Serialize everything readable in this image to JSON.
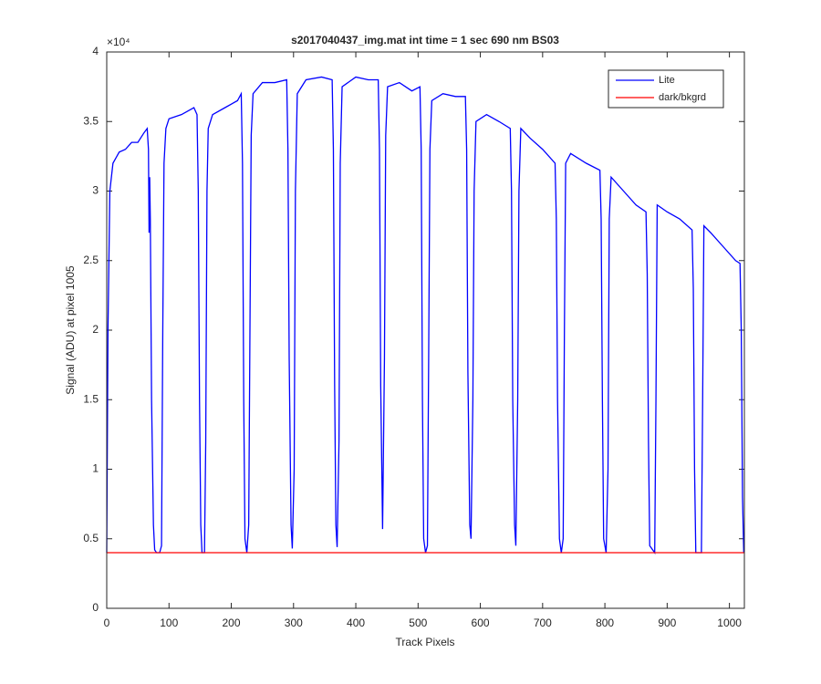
{
  "chart_data": {
    "type": "line",
    "title": "s2017040437_img.mat int time = 1 sec  690 nm BS03",
    "x_label": "Track Pixels",
    "y_label": "Signal (ADU) at pixel 1005",
    "y_exponent": "×10⁴",
    "xlim": [
      0,
      1024
    ],
    "xticks": [
      0,
      100,
      200,
      300,
      400,
      500,
      600,
      700,
      800,
      900,
      1000
    ],
    "ylim": [
      0,
      4
    ],
    "yticks": [
      0,
      0.5,
      1,
      1.5,
      2,
      2.5,
      3,
      3.5,
      4
    ],
    "grid": false,
    "legend": "northeast",
    "series": [
      {
        "name": "Lite",
        "color": "#0000ff",
        "x": [
          0,
          2,
          5,
          10,
          20,
          30,
          40,
          50,
          60,
          65,
          67,
          68,
          69,
          70,
          72,
          75,
          77,
          80,
          85,
          88,
          90,
          92,
          95,
          100,
          120,
          140,
          145,
          147,
          149,
          151,
          153,
          157,
          159,
          161,
          163,
          170,
          190,
          210,
          216,
          218,
          220,
          222,
          225,
          228,
          230,
          232,
          235,
          250,
          270,
          289,
          291,
          293,
          296,
          298,
          301,
          303,
          306,
          320,
          345,
          362,
          364,
          366,
          368,
          370,
          373,
          375,
          378,
          400,
          420,
          436,
          438,
          440,
          443,
          446,
          448,
          451,
          470,
          490,
          503,
          505,
          507,
          509,
          512,
          515,
          517,
          519,
          522,
          540,
          560,
          576,
          578,
          580,
          583,
          585,
          588,
          590,
          593,
          610,
          630,
          648,
          650,
          652,
          655,
          657,
          660,
          662,
          665,
          680,
          700,
          720,
          722,
          724,
          727,
          730,
          733,
          735,
          737,
          745,
          770,
          792,
          794,
          796,
          798,
          802,
          805,
          807,
          810,
          830,
          850,
          866,
          868,
          870,
          872,
          880,
          882,
          884,
          900,
          920,
          940,
          942,
          944,
          946,
          955,
          957,
          959,
          970,
          990,
          1010,
          1017,
          1019,
          1021,
          1023
        ],
        "values": [
          0.4,
          2.0,
          3.0,
          3.2,
          3.28,
          3.3,
          3.35,
          3.35,
          3.42,
          3.45,
          3.3,
          2.7,
          3.1,
          2.8,
          1.5,
          0.6,
          0.42,
          0.4,
          0.4,
          0.45,
          2.0,
          3.2,
          3.45,
          3.52,
          3.55,
          3.6,
          3.55,
          3.0,
          1.5,
          0.6,
          0.4,
          0.4,
          1.2,
          3.0,
          3.45,
          3.55,
          3.6,
          3.65,
          3.7,
          3.2,
          1.5,
          0.5,
          0.4,
          0.6,
          2.0,
          3.4,
          3.7,
          3.78,
          3.78,
          3.8,
          3.3,
          1.8,
          0.6,
          0.43,
          1.0,
          3.0,
          3.7,
          3.8,
          3.82,
          3.8,
          3.3,
          1.6,
          0.6,
          0.44,
          1.2,
          3.2,
          3.75,
          3.82,
          3.8,
          3.8,
          3.3,
          1.6,
          0.57,
          1.8,
          3.4,
          3.75,
          3.78,
          3.72,
          3.75,
          3.3,
          1.5,
          0.5,
          0.4,
          0.45,
          1.8,
          3.3,
          3.65,
          3.7,
          3.68,
          3.68,
          3.3,
          1.7,
          0.6,
          0.5,
          1.5,
          3.0,
          3.5,
          3.55,
          3.5,
          3.45,
          3.0,
          1.5,
          0.6,
          0.45,
          1.5,
          3.0,
          3.45,
          3.38,
          3.3,
          3.2,
          2.8,
          1.5,
          0.5,
          0.4,
          0.5,
          2.0,
          3.2,
          3.27,
          3.2,
          3.15,
          2.8,
          1.5,
          0.5,
          0.4,
          1.0,
          2.8,
          3.1,
          3.0,
          2.9,
          2.85,
          2.4,
          1.2,
          0.45,
          0.4,
          1.5,
          2.9,
          2.85,
          2.8,
          2.72,
          2.3,
          1.0,
          0.4,
          0.4,
          1.5,
          2.75,
          2.7,
          2.6,
          2.5,
          2.48,
          2.0,
          0.8,
          0.4
        ]
      },
      {
        "name": "dark/bkgrd",
        "color": "#ff0000",
        "x": [
          0,
          1024
        ],
        "values": [
          0.4,
          0.4
        ]
      }
    ]
  }
}
